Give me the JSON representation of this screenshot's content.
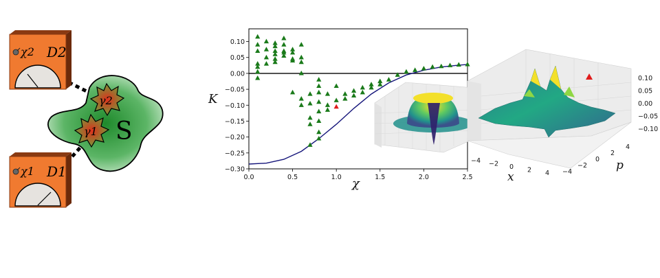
{
  "diagram": {
    "system_label": "S",
    "subsystems": [
      {
        "label": "γ2",
        "color": "#d8331f"
      },
      {
        "label": "γ1",
        "color": "#d8331f"
      }
    ],
    "detectors": [
      {
        "param": "χ2",
        "name": "D2"
      },
      {
        "param": "χ1",
        "name": "D1"
      }
    ],
    "colors": {
      "detector": "#f07a30",
      "detector_dark": "#6b2a0a",
      "blob": "#2e9a3a",
      "marker": "#e01b1b",
      "points": "#1a7a1a",
      "curve": "#14147a"
    }
  },
  "chart_data": [
    {
      "type": "scatter",
      "ylabel": "K",
      "xlabel": "χ",
      "xlim": [
        0,
        2.5
      ],
      "ylim": [
        -0.3,
        0.14
      ],
      "xticks": [
        "0.0",
        "0.5",
        "1.0",
        "1.5",
        "2.0",
        "2.5"
      ],
      "yticks": [
        "0.10",
        "0.05",
        "0.00",
        "−0.05",
        "−0.10",
        "−0.15",
        "−0.20",
        "−0.25",
        "−0.30"
      ],
      "series": [
        {
          "kind": "points",
          "color": "#1a7a1a",
          "points": [
            [
              0.1,
              0.115
            ],
            [
              0.1,
              0.09
            ],
            [
              0.1,
              0.07
            ],
            [
              0.1,
              0.03
            ],
            [
              0.1,
              0.02
            ],
            [
              0.1,
              0.005
            ],
            [
              0.1,
              -0.015
            ],
            [
              0.2,
              0.1
            ],
            [
              0.2,
              0.075
            ],
            [
              0.2,
              0.05
            ],
            [
              0.2,
              0.03
            ],
            [
              0.3,
              0.095
            ],
            [
              0.3,
              0.085
            ],
            [
              0.3,
              0.07
            ],
            [
              0.3,
              0.06
            ],
            [
              0.3,
              0.045
            ],
            [
              0.3,
              0.035
            ],
            [
              0.4,
              0.11
            ],
            [
              0.4,
              0.09
            ],
            [
              0.4,
              0.07
            ],
            [
              0.4,
              0.065
            ],
            [
              0.4,
              0.055
            ],
            [
              0.5,
              0.075
            ],
            [
              0.5,
              0.065
            ],
            [
              0.5,
              0.045
            ],
            [
              0.5,
              0.04
            ],
            [
              0.6,
              0.09
            ],
            [
              0.6,
              0.05
            ],
            [
              0.6,
              0.035
            ],
            [
              0.6,
              0.0
            ],
            [
              0.5,
              -0.06
            ],
            [
              0.6,
              -0.08
            ],
            [
              0.6,
              -0.1
            ],
            [
              0.7,
              -0.065
            ],
            [
              0.7,
              -0.095
            ],
            [
              0.7,
              -0.14
            ],
            [
              0.7,
              -0.16
            ],
            [
              0.7,
              -0.225
            ],
            [
              0.8,
              -0.02
            ],
            [
              0.8,
              -0.04
            ],
            [
              0.8,
              -0.06
            ],
            [
              0.8,
              -0.09
            ],
            [
              0.8,
              -0.12
            ],
            [
              0.8,
              -0.15
            ],
            [
              0.8,
              -0.185
            ],
            [
              0.8,
              -0.205
            ],
            [
              0.9,
              -0.065
            ],
            [
              0.9,
              -0.1
            ],
            [
              0.9,
              -0.115
            ],
            [
              1.0,
              -0.04
            ],
            [
              1.0,
              -0.085
            ],
            [
              1.1,
              -0.065
            ],
            [
              1.1,
              -0.08
            ],
            [
              1.2,
              -0.055
            ],
            [
              1.2,
              -0.07
            ],
            [
              1.3,
              -0.045
            ],
            [
              1.3,
              -0.06
            ],
            [
              1.4,
              -0.035
            ],
            [
              1.4,
              -0.045
            ],
            [
              1.5,
              -0.025
            ],
            [
              1.5,
              -0.035
            ],
            [
              1.6,
              -0.02
            ],
            [
              1.7,
              -0.005
            ],
            [
              1.8,
              0.005
            ],
            [
              1.9,
              0.01
            ],
            [
              2.0,
              0.015
            ],
            [
              2.1,
              0.02
            ],
            [
              2.2,
              0.022
            ],
            [
              2.3,
              0.025
            ],
            [
              2.4,
              0.027
            ],
            [
              2.5,
              0.028
            ]
          ]
        },
        {
          "kind": "marker",
          "color": "#e01b1b",
          "points": [
            [
              1.0,
              -0.105
            ]
          ]
        },
        {
          "kind": "curve",
          "color": "#14147a",
          "points": [
            [
              0.0,
              -0.285
            ],
            [
              0.2,
              -0.282
            ],
            [
              0.4,
              -0.27
            ],
            [
              0.6,
              -0.245
            ],
            [
              0.8,
              -0.205
            ],
            [
              1.0,
              -0.16
            ],
            [
              1.2,
              -0.11
            ],
            [
              1.4,
              -0.065
            ],
            [
              1.6,
              -0.03
            ],
            [
              1.8,
              -0.005
            ],
            [
              2.0,
              0.01
            ],
            [
              2.2,
              0.02
            ],
            [
              2.4,
              0.026
            ],
            [
              2.5,
              0.028
            ]
          ]
        }
      ]
    },
    {
      "type": "surface",
      "x_ticks": [
        "−4",
        "−2",
        "0",
        "2",
        "4"
      ],
      "p_ticks": [
        "4",
        "2",
        "0",
        "−2",
        "−4"
      ],
      "z_ticks": [
        "0.10",
        "0.05",
        "0.00",
        "−0.05",
        "−0.10"
      ],
      "xlabel": "x",
      "plabel": "p",
      "marker_color": "#e01b1b"
    }
  ]
}
